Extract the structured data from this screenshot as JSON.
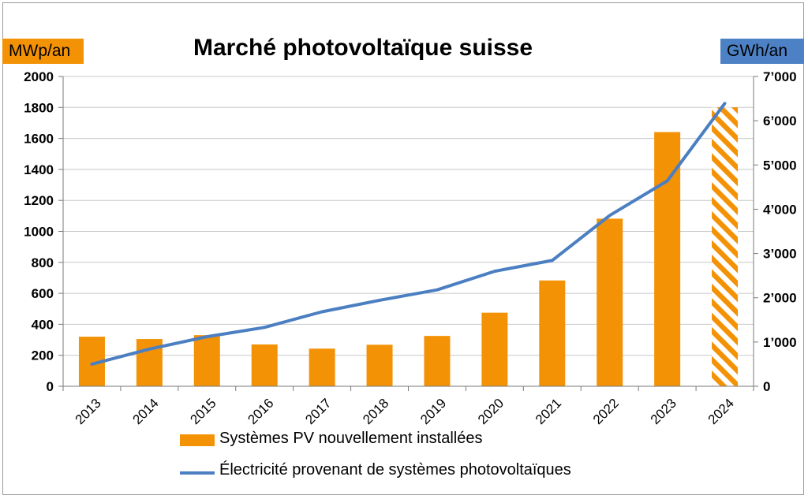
{
  "title": "Marché photovoltaïque suisse",
  "left_unit": "MWp/an",
  "right_unit": "GWh/an",
  "colors": {
    "bar": "#f39205",
    "line": "#4b7fc2",
    "left_unit_bg": "#f39205",
    "right_unit_bg": "#4d81c5"
  },
  "chart_data": {
    "type": "bar",
    "categories": [
      "2013",
      "2014",
      "2015",
      "2016",
      "2017",
      "2018",
      "2019",
      "2020",
      "2021",
      "2022",
      "2023",
      "2024"
    ],
    "series": [
      {
        "name": "Systèmes PV nouvellement installées",
        "type": "bar",
        "axis": "left",
        "values": [
          320,
          305,
          330,
          270,
          243,
          268,
          325,
          475,
          683,
          1082,
          1641,
          1800
        ],
        "hatched": [
          false,
          false,
          false,
          false,
          false,
          false,
          false,
          false,
          false,
          false,
          false,
          true
        ]
      },
      {
        "name": "Électricité provenant de systèmes photovoltaïques",
        "type": "line",
        "axis": "right",
        "values": [
          500,
          840,
          1120,
          1330,
          1683,
          1944,
          2178,
          2599,
          2842,
          3860,
          4640,
          6390
        ]
      }
    ],
    "y_left": {
      "min": 0,
      "max": 2000,
      "ticks": [
        0,
        200,
        400,
        600,
        800,
        1000,
        1200,
        1400,
        1600,
        1800,
        2000
      ],
      "tick_labels": [
        "0",
        "200",
        "400",
        "600",
        "800",
        "1000",
        "1200",
        "1400",
        "1600",
        "1800",
        "2000"
      ]
    },
    "y_right": {
      "min": 0,
      "max": 7000,
      "ticks": [
        0,
        1000,
        2000,
        3000,
        4000,
        5000,
        6000,
        7000
      ],
      "tick_labels": [
        "0",
        "1’000",
        "2’000",
        "3’000",
        "4’000",
        "5’000",
        "6’000",
        "7’000"
      ]
    },
    "grid": "horizontal",
    "legend_position": "bottom"
  }
}
